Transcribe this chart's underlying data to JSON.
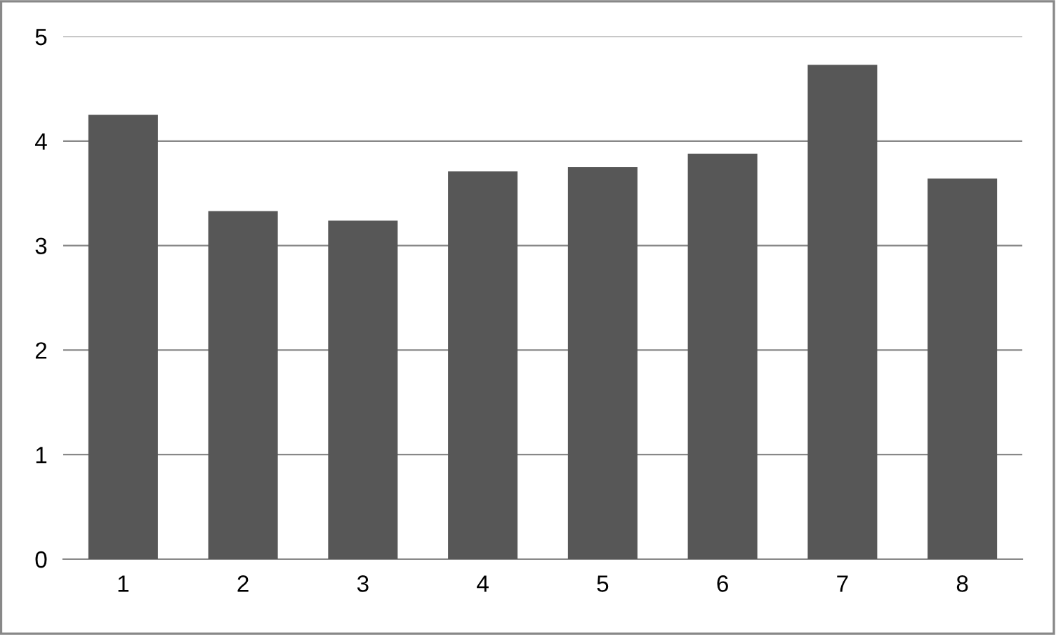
{
  "chart_data": {
    "type": "bar",
    "categories": [
      "1",
      "2",
      "3",
      "4",
      "5",
      "6",
      "7",
      "8"
    ],
    "values": [
      4.25,
      3.33,
      3.24,
      3.71,
      3.75,
      3.88,
      4.73,
      3.64
    ],
    "color": "#575757",
    "ylim": [
      0,
      5
    ],
    "yticks": [
      0,
      1,
      2,
      3,
      4,
      5
    ],
    "grid": "y",
    "legend": false
  }
}
